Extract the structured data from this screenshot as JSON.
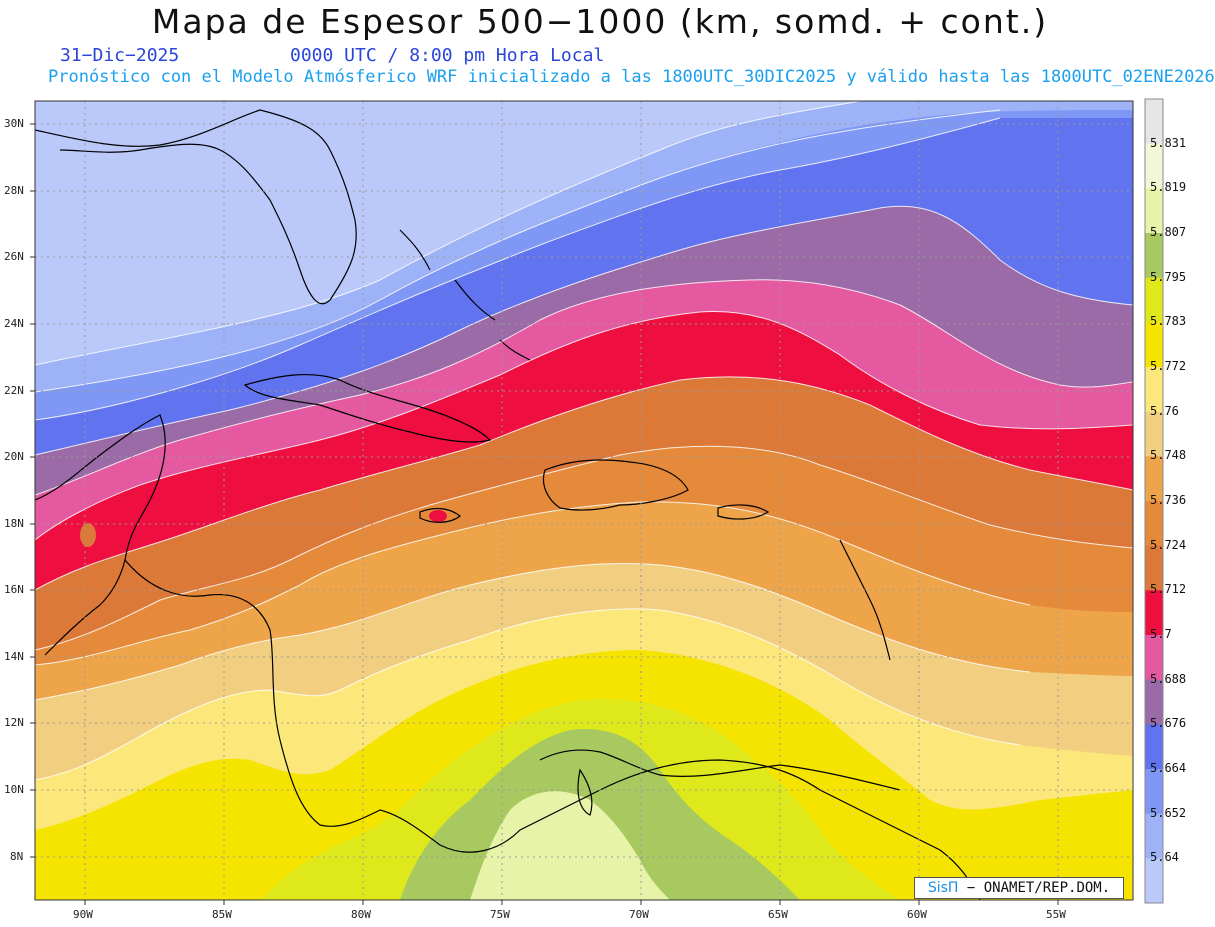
{
  "header": {
    "title": "Mapa de Espesor 500−1000 (km, somd. + cont.)",
    "date": "31−Dic−2025",
    "time": "0000 UTC / 8:00 pm Hora Local",
    "forecast": "Pronóstico con el Modelo Atmósferico WRF inicializado a las 1800UTC_30DIC2025 y válido hasta las  1800UTC_02ENE2026"
  },
  "map": {
    "lon_ticks": [
      "90W",
      "85W",
      "80W",
      "75W",
      "70W",
      "65W",
      "60W",
      "55W"
    ],
    "lat_ticks": [
      "30N",
      "28N",
      "26N",
      "24N",
      "22N",
      "20N",
      "18N",
      "16N",
      "14N",
      "12N",
      "10N",
      "8N"
    ],
    "lon_range": [
      -92,
      -52.5
    ],
    "lat_range": [
      6.7,
      30.7
    ]
  },
  "colorbar": {
    "labels": [
      "5.831",
      "5.819",
      "5.807",
      "5.795",
      "5.783",
      "5.772",
      "5.76",
      "5.748",
      "5.736",
      "5.724",
      "5.712",
      "5.7",
      "5.688",
      "5.676",
      "5.664",
      "5.652",
      "5.64"
    ],
    "colors": [
      "#e6e6e6",
      "#f3f7d8",
      "#e6f3a8",
      "#a8c860",
      "#dfe81a",
      "#f5e300",
      "#fce87a",
      "#f2cf80",
      "#eea54a",
      "#e58a3a",
      "#dc7838",
      "#ee0e3f",
      "#e559a0",
      "#9a6ba6",
      "#6173ee",
      "#7f98f5",
      "#9eb3f7",
      "#bac8fa"
    ]
  },
  "credit": {
    "brand": "SisΠ",
    "text": "− ONAMET/REP.DOM."
  }
}
